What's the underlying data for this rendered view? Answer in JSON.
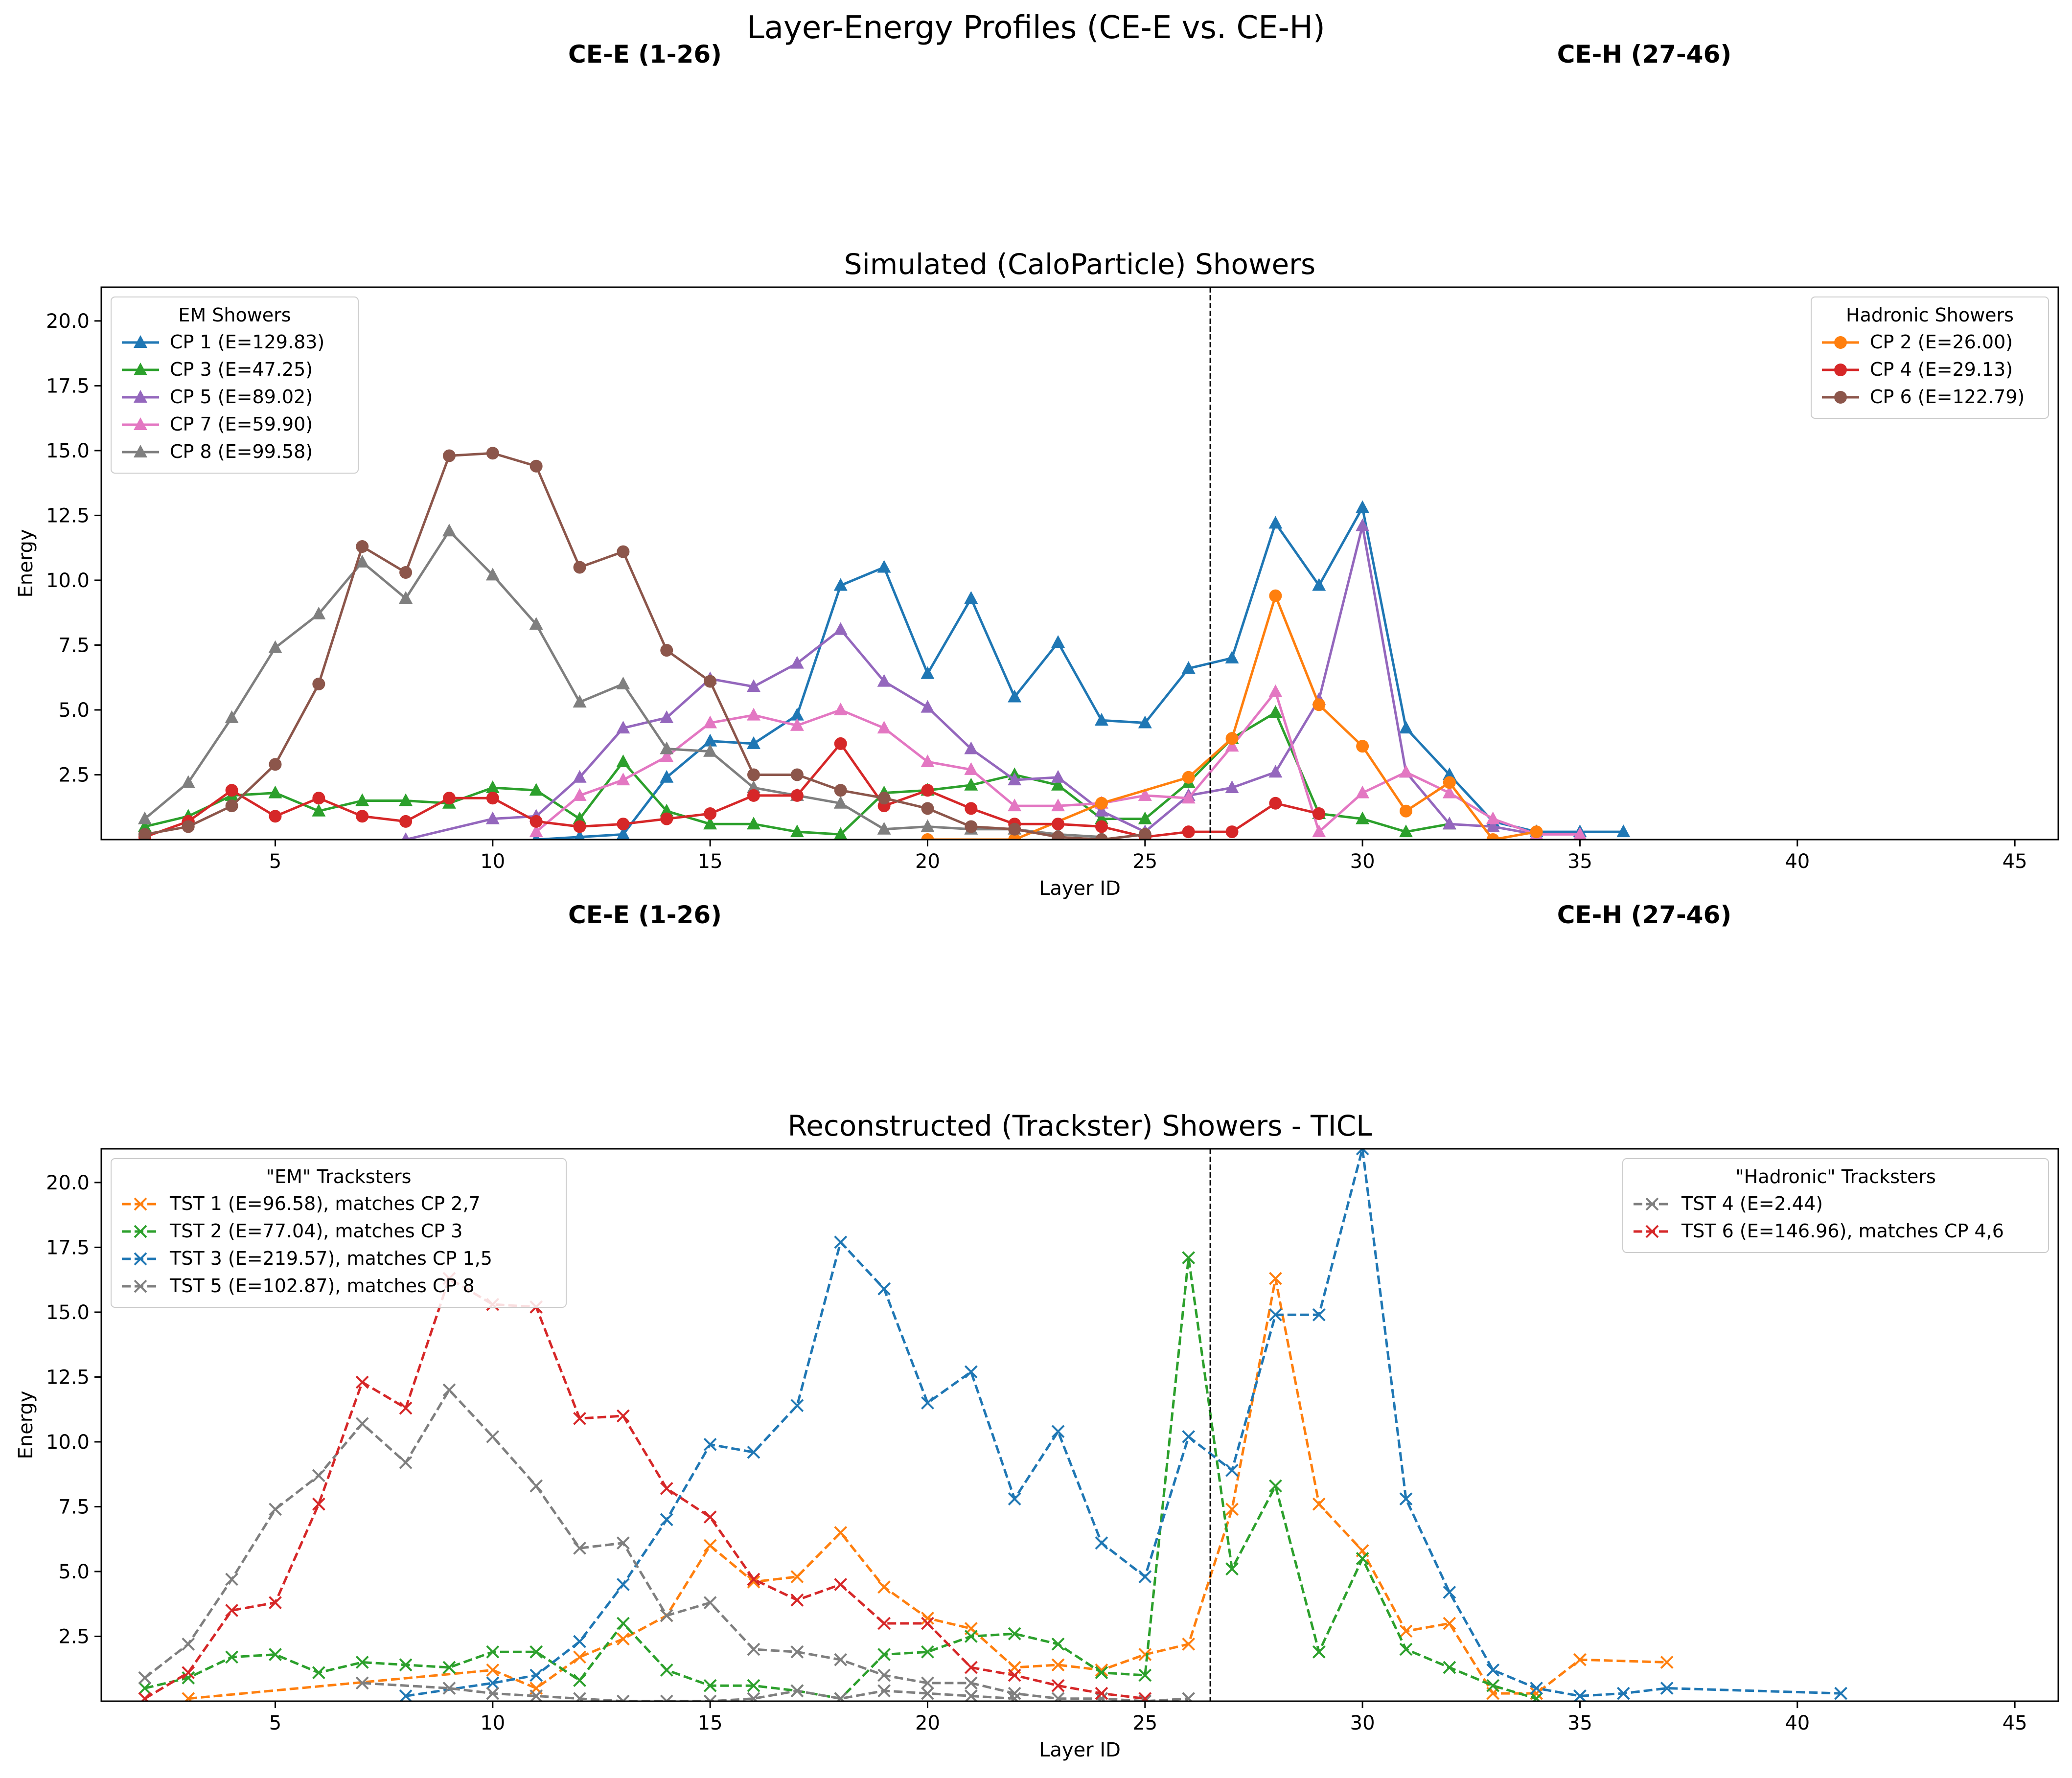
{
  "figure": {
    "title": "Layer-Energy Profiles (CE-E vs. CE-H)",
    "section_labels": {
      "cee": "CE-E (1-26)",
      "ceh": "CE-H (27-46)"
    }
  },
  "colors": {
    "blue": "#1f77b4",
    "orange": "#ff7f0e",
    "green": "#2ca02c",
    "red": "#d62728",
    "purple": "#9467bd",
    "brown": "#8c564b",
    "pink": "#e377c2",
    "gray": "#7f7f7f"
  },
  "chart_data": [
    {
      "type": "line",
      "title": "Simulated (CaloParticle) Showers",
      "xlabel": "Layer ID",
      "ylabel": "Energy",
      "xlim": [
        1,
        46
      ],
      "ylim": [
        0,
        21.3
      ],
      "xticks": [
        5,
        10,
        15,
        20,
        25,
        30,
        35,
        40,
        45
      ],
      "yticks": [
        2.5,
        5.0,
        7.5,
        10.0,
        12.5,
        15.0,
        17.5,
        20.0
      ],
      "vline_x": 26.5,
      "grid": false,
      "legends": [
        {
          "title": "EM Showers",
          "placement": "upper-left",
          "series": [
            0,
            1,
            2,
            3,
            4
          ]
        },
        {
          "title": "Hadronic Showers",
          "placement": "upper-right",
          "series": [
            5,
            6,
            7
          ]
        }
      ],
      "series": [
        {
          "name": "CP 1 (E=129.83)",
          "color": "blue",
          "marker": "triangle",
          "dash": false,
          "x": [
            11,
            12,
            13,
            14,
            15,
            16,
            17,
            18,
            19,
            20,
            21,
            22,
            23,
            24,
            25,
            26,
            27,
            28,
            29,
            30,
            31,
            32,
            33,
            34,
            35,
            36
          ],
          "y": [
            0.0,
            0.1,
            0.2,
            2.4,
            3.8,
            3.7,
            4.8,
            9.8,
            10.5,
            6.4,
            9.3,
            5.5,
            7.6,
            4.6,
            4.5,
            6.6,
            7.0,
            12.2,
            9.8,
            12.8,
            4.3,
            2.5,
            0.7,
            0.3,
            0.3,
            0.3
          ]
        },
        {
          "name": "CP 3 (E=47.25)",
          "color": "green",
          "marker": "triangle",
          "dash": false,
          "x": [
            2,
            3,
            4,
            5,
            6,
            7,
            8,
            9,
            10,
            11,
            12,
            13,
            14,
            15,
            16,
            17,
            18,
            19,
            20,
            21,
            22,
            23,
            24,
            25,
            26,
            27,
            28,
            29,
            30,
            31,
            32
          ],
          "y": [
            0.5,
            0.9,
            1.7,
            1.8,
            1.1,
            1.5,
            1.5,
            1.4,
            2.0,
            1.9,
            0.8,
            3.0,
            1.1,
            0.6,
            0.6,
            0.3,
            0.2,
            1.8,
            1.9,
            2.1,
            2.5,
            2.1,
            0.8,
            0.8,
            2.2,
            3.9,
            4.9,
            1.0,
            0.8,
            0.3,
            0.6
          ]
        },
        {
          "name": "CP 5 (E=89.02)",
          "color": "purple",
          "marker": "triangle",
          "dash": false,
          "x": [
            8,
            10,
            11,
            12,
            13,
            14,
            15,
            16,
            17,
            18,
            19,
            20,
            21,
            22,
            23,
            24,
            25,
            26,
            27,
            28,
            29,
            30,
            31,
            32,
            33,
            34
          ],
          "y": [
            0.0,
            0.8,
            0.9,
            2.4,
            4.3,
            4.7,
            6.2,
            5.9,
            6.8,
            8.1,
            6.1,
            5.1,
            3.5,
            2.3,
            2.4,
            1.1,
            0.3,
            1.7,
            2.0,
            2.6,
            5.4,
            12.1,
            2.6,
            0.6,
            0.5,
            0.2
          ]
        },
        {
          "name": "CP 7 (E=59.90)",
          "color": "pink",
          "marker": "triangle",
          "dash": false,
          "x": [
            11,
            12,
            13,
            14,
            15,
            16,
            17,
            18,
            19,
            20,
            21,
            22,
            23,
            24,
            25,
            26,
            27,
            28,
            29,
            30,
            31,
            32,
            33,
            34,
            35
          ],
          "y": [
            0.3,
            1.7,
            2.3,
            3.2,
            4.5,
            4.8,
            4.4,
            5.0,
            4.3,
            3.0,
            2.7,
            1.3,
            1.3,
            1.4,
            1.7,
            1.6,
            3.6,
            5.7,
            0.3,
            1.8,
            2.6,
            1.8,
            0.8,
            0.2,
            0.2
          ]
        },
        {
          "name": "CP 8 (E=99.58)",
          "color": "gray",
          "marker": "triangle",
          "dash": false,
          "x": [
            2,
            3,
            4,
            5,
            6,
            7,
            8,
            9,
            10,
            11,
            12,
            13,
            14,
            15,
            16,
            17,
            18,
            19,
            20,
            21,
            22,
            23,
            24
          ],
          "y": [
            0.8,
            2.2,
            4.7,
            7.4,
            8.7,
            10.7,
            9.3,
            11.9,
            10.2,
            8.3,
            5.3,
            6.0,
            3.5,
            3.4,
            2.0,
            1.7,
            1.4,
            0.4,
            0.5,
            0.4,
            0.4,
            0.2,
            0.1
          ]
        },
        {
          "name": "CP 2 (E=26.00)",
          "color": "orange",
          "marker": "circle",
          "dash": false,
          "x": [
            20,
            22,
            24,
            26,
            27,
            28,
            29,
            30,
            31,
            32,
            33,
            34
          ],
          "y": [
            0.0,
            0.0,
            1.4,
            2.4,
            3.9,
            9.4,
            5.2,
            3.6,
            1.1,
            2.2,
            0.0,
            0.3
          ]
        },
        {
          "name": "CP 4 (E=29.13)",
          "color": "red",
          "marker": "circle",
          "dash": false,
          "x": [
            2,
            3,
            4,
            5,
            6,
            7,
            8,
            9,
            10,
            11,
            12,
            13,
            14,
            15,
            16,
            17,
            18,
            19,
            20,
            21,
            22,
            23,
            24,
            25,
            26,
            27,
            28,
            29
          ],
          "y": [
            0.1,
            0.7,
            1.9,
            0.9,
            1.6,
            0.9,
            0.7,
            1.6,
            1.6,
            0.7,
            0.5,
            0.6,
            0.8,
            1.0,
            1.7,
            1.7,
            3.7,
            1.3,
            1.9,
            1.2,
            0.6,
            0.6,
            0.5,
            0.1,
            0.3,
            0.3,
            1.4,
            1.0
          ]
        },
        {
          "name": "CP 6 (E=122.79)",
          "color": "brown",
          "marker": "circle",
          "dash": false,
          "x": [
            2,
            3,
            4,
            5,
            6,
            7,
            8,
            9,
            10,
            11,
            12,
            13,
            14,
            15,
            16,
            17,
            18,
            19,
            20,
            21,
            22,
            23,
            24,
            25
          ],
          "y": [
            0.2,
            0.5,
            1.3,
            2.9,
            6.0,
            11.3,
            10.3,
            14.8,
            14.9,
            14.4,
            10.5,
            11.1,
            7.3,
            6.1,
            2.5,
            2.5,
            1.9,
            1.6,
            1.2,
            0.5,
            0.4,
            0.1,
            0.0,
            0.2
          ]
        }
      ]
    },
    {
      "type": "line",
      "title": "Reconstructed (Trackster) Showers - TICL",
      "xlabel": "Layer ID",
      "ylabel": "Energy",
      "xlim": [
        1,
        46
      ],
      "ylim": [
        0,
        21.3
      ],
      "xticks": [
        5,
        10,
        15,
        20,
        25,
        30,
        35,
        40,
        45
      ],
      "yticks": [
        2.5,
        5.0,
        7.5,
        10.0,
        12.5,
        15.0,
        17.5,
        20.0
      ],
      "vline_x": 26.5,
      "grid": false,
      "legends": [
        {
          "title": "\"EM\" Tracksters",
          "placement": "upper-left",
          "series": [
            0,
            1,
            2,
            3
          ]
        },
        {
          "title": "\"Hadronic\" Tracksters",
          "placement": "upper-right",
          "series": [
            4,
            5
          ]
        }
      ],
      "series": [
        {
          "name": "TST 1 (E=96.58), matches CP 2,7",
          "color": "orange",
          "marker": "x",
          "dash": true,
          "x": [
            3,
            10,
            11,
            12,
            13,
            14,
            15,
            16,
            17,
            18,
            19,
            20,
            21,
            22,
            23,
            24,
            25,
            26,
            27,
            28,
            29,
            30,
            31,
            32,
            33,
            34,
            35,
            37
          ],
          "y": [
            0.1,
            1.2,
            0.5,
            1.7,
            2.4,
            3.3,
            6.0,
            4.6,
            4.8,
            6.5,
            4.4,
            3.2,
            2.8,
            1.3,
            1.4,
            1.2,
            1.8,
            2.2,
            7.4,
            16.3,
            7.6,
            5.8,
            2.7,
            3.0,
            0.3,
            0.3,
            1.6,
            1.5
          ]
        },
        {
          "name": "TST 2 (E=77.04), matches CP 3",
          "color": "green",
          "marker": "x",
          "dash": true,
          "x": [
            2,
            3,
            4,
            5,
            6,
            7,
            8,
            9,
            10,
            11,
            12,
            13,
            14,
            15,
            16,
            17,
            18,
            19,
            20,
            21,
            22,
            23,
            24,
            25,
            26,
            27,
            28,
            29,
            30,
            31,
            32,
            33,
            34
          ],
          "y": [
            0.5,
            0.9,
            1.7,
            1.8,
            1.1,
            1.5,
            1.4,
            1.3,
            1.9,
            1.9,
            0.8,
            3.0,
            1.2,
            0.6,
            0.6,
            0.4,
            0.1,
            1.8,
            1.9,
            2.5,
            2.6,
            2.2,
            1.1,
            1.0,
            17.1,
            5.1,
            8.3,
            1.9,
            5.5,
            2.0,
            1.3,
            0.6,
            0.1
          ]
        },
        {
          "name": "TST 3 (E=219.57), matches CP 1,5",
          "color": "blue",
          "marker": "x",
          "dash": true,
          "x": [
            8,
            10,
            11,
            12,
            13,
            14,
            15,
            16,
            17,
            18,
            19,
            20,
            21,
            22,
            23,
            24,
            25,
            26,
            27,
            28,
            29,
            30,
            31,
            32,
            33,
            34,
            35,
            36,
            37,
            41
          ],
          "y": [
            0.2,
            0.7,
            1.0,
            2.3,
            4.5,
            7.0,
            9.9,
            9.6,
            11.4,
            17.7,
            15.9,
            11.5,
            12.7,
            7.8,
            10.4,
            6.1,
            4.8,
            10.2,
            8.9,
            14.9,
            14.9,
            21.3,
            7.8,
            4.2,
            1.2,
            0.5,
            0.2,
            0.3,
            0.5,
            0.3
          ]
        },
        {
          "name": "TST 5 (E=102.87), matches CP 8",
          "color": "gray",
          "marker": "x",
          "dash": true,
          "x": [
            2,
            3,
            4,
            5,
            6,
            7,
            8,
            9,
            10,
            11,
            12,
            13,
            14,
            15,
            16,
            17,
            18,
            19,
            20,
            21,
            22,
            23,
            24,
            25,
            26
          ],
          "y": [
            0.9,
            2.2,
            4.7,
            7.4,
            8.7,
            10.7,
            9.2,
            12.0,
            10.2,
            8.3,
            5.9,
            6.1,
            3.3,
            3.8,
            2.0,
            1.9,
            1.6,
            1.0,
            0.7,
            0.7,
            0.3,
            0.1,
            0.1,
            0.0,
            0.1
          ]
        },
        {
          "name": "TST 4 (E=2.44)",
          "color": "gray",
          "marker": "x",
          "dash": true,
          "x": [
            7,
            9,
            10,
            11,
            12,
            13,
            14,
            15,
            16,
            17,
            18,
            19,
            20,
            21,
            22
          ],
          "y": [
            0.7,
            0.5,
            0.3,
            0.2,
            0.1,
            0.0,
            0.0,
            0.0,
            0.1,
            0.4,
            0.1,
            0.4,
            0.3,
            0.2,
            0.1
          ]
        },
        {
          "name": "TST 6 (E=146.96), matches CP 4,6",
          "color": "red",
          "marker": "x",
          "dash": true,
          "x": [
            2,
            3,
            4,
            5,
            6,
            7,
            8,
            9,
            10,
            11,
            12,
            13,
            14,
            15,
            16,
            17,
            18,
            19,
            20,
            21,
            22,
            23,
            24,
            25
          ],
          "y": [
            0.1,
            1.1,
            3.5,
            3.8,
            7.6,
            12.3,
            11.3,
            16.3,
            15.3,
            15.2,
            10.9,
            11.0,
            8.2,
            7.1,
            4.7,
            3.9,
            4.5,
            3.0,
            3.0,
            1.3,
            1.0,
            0.6,
            0.3,
            0.1
          ]
        }
      ]
    }
  ]
}
